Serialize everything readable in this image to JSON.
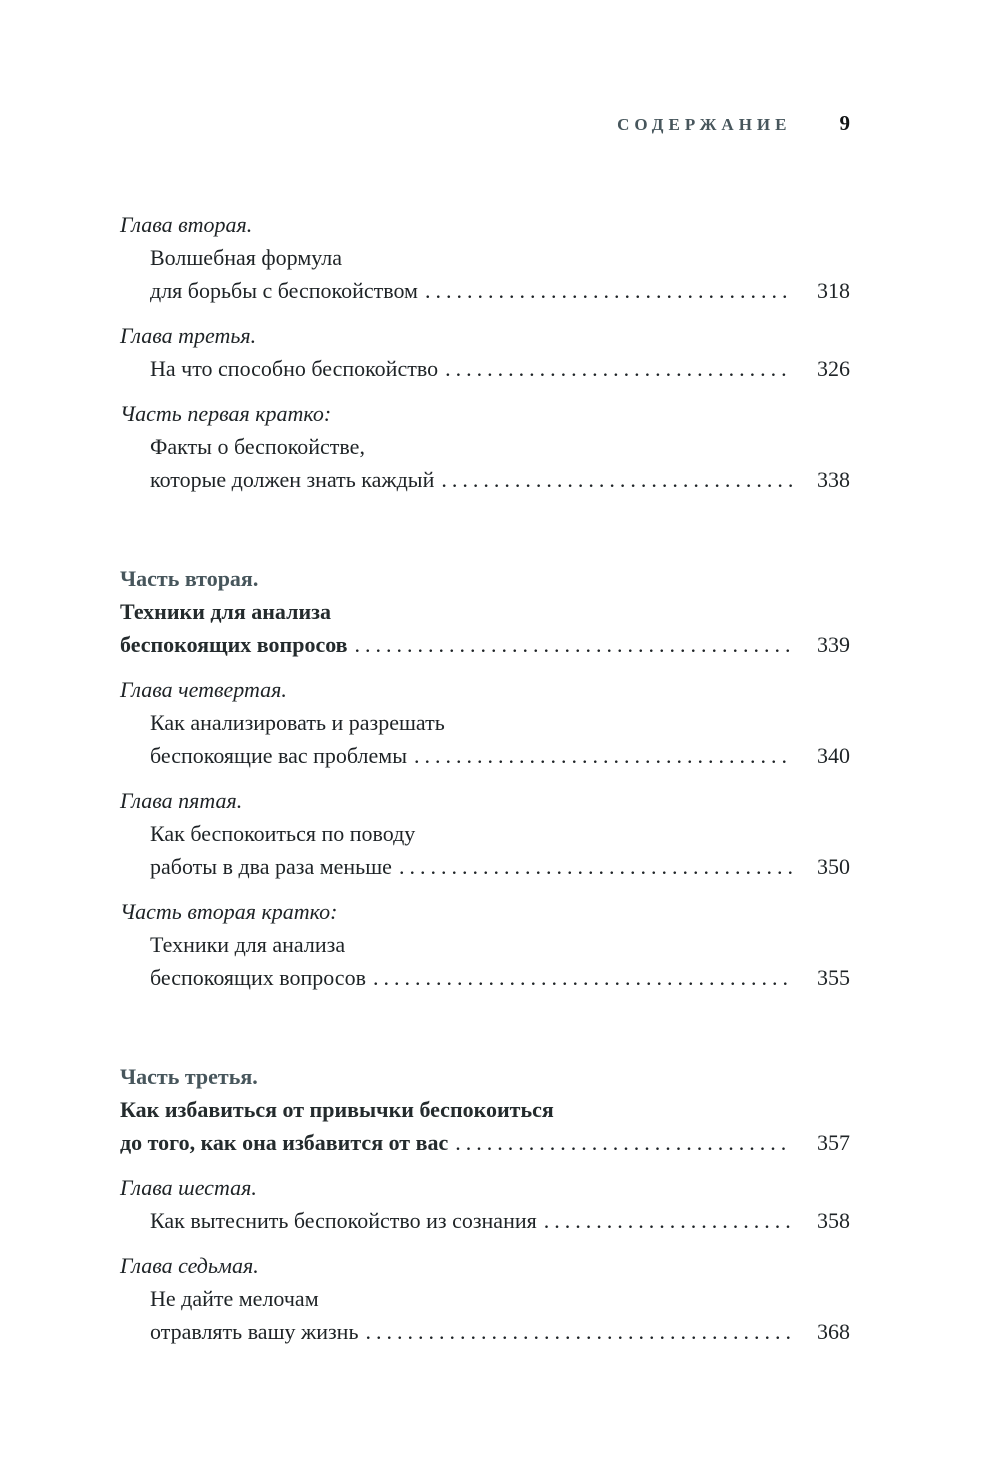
{
  "header": {
    "running_head": "СОДЕРЖАНИЕ",
    "page_number": "9"
  },
  "toc": {
    "entries": [
      {
        "kind": "chapter",
        "heading": "Глава вторая.",
        "lines": [
          "Волшебная формула"
        ],
        "tail": "для борьбы с беспокойством",
        "page": "318"
      },
      {
        "kind": "chapter",
        "heading": "Глава третья.",
        "lines": [],
        "tail": "На что способно беспокойство",
        "page": "326"
      },
      {
        "kind": "chapter",
        "heading": "Часть первая кратко:",
        "lines": [
          "Факты о беспокойстве,"
        ],
        "tail": "которые должен знать каждый",
        "page": "338"
      },
      {
        "kind": "part",
        "heading": "Часть вторая.",
        "lines": [
          "Техники для анализа"
        ],
        "tail": "беспокоящих вопросов",
        "page": "339"
      },
      {
        "kind": "chapter",
        "heading": "Глава четвертая.",
        "lines": [
          "Как анализировать и разрешать"
        ],
        "tail": "беспокоящие вас проблемы",
        "page": "340"
      },
      {
        "kind": "chapter",
        "heading": "Глава пятая.",
        "lines": [
          "Как беспокоиться по поводу"
        ],
        "tail": "работы в два раза меньше",
        "page": "350"
      },
      {
        "kind": "chapter",
        "heading": "Часть вторая кратко:",
        "lines": [
          "Техники для анализа"
        ],
        "tail": "беспокоящих вопросов",
        "page": "355"
      },
      {
        "kind": "part",
        "heading": "Часть третья.",
        "lines": [
          "Как избавиться от привычки беспокоиться"
        ],
        "tail": "до того, как она избавится от вас",
        "page": "357"
      },
      {
        "kind": "chapter",
        "heading": "Глава шестая.",
        "lines": [],
        "tail": "Как вытеснить беспокойство из сознания",
        "page": "358"
      },
      {
        "kind": "chapter",
        "heading": "Глава седьмая.",
        "lines": [
          "Не дайте мелочам"
        ],
        "tail": "отравлять вашу жизнь",
        "page": "368"
      }
    ]
  },
  "colors": {
    "accent": "#47565c",
    "text": "#1e2326"
  }
}
